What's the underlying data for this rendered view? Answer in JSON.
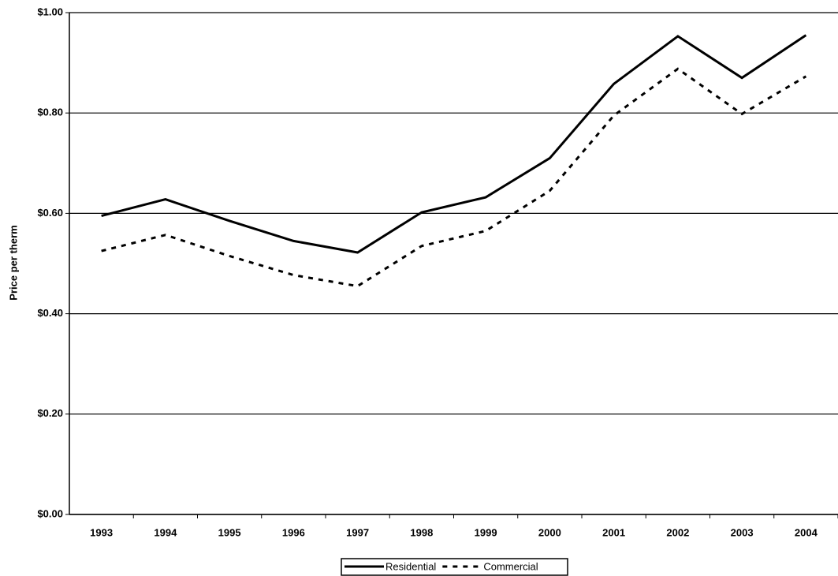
{
  "chart_data": {
    "type": "line",
    "y_label": "Price per therm",
    "categories": [
      "1993",
      "1994",
      "1995",
      "1996",
      "1997",
      "1998",
      "1999",
      "2000",
      "2001",
      "2002",
      "2003",
      "2004"
    ],
    "series": [
      {
        "name": "Residential",
        "color": "#000000",
        "line_style": "solid",
        "values": [
          0.595,
          0.628,
          0.585,
          0.545,
          0.522,
          0.602,
          0.632,
          0.71,
          0.858,
          0.953,
          0.87,
          0.955
        ]
      },
      {
        "name": "Commercial",
        "color": "#000000",
        "line_style": "dashed",
        "values": [
          0.525,
          0.557,
          0.515,
          0.477,
          0.455,
          0.535,
          0.565,
          0.645,
          0.795,
          0.888,
          0.798,
          0.873
        ]
      }
    ],
    "ylim": [
      0,
      1
    ],
    "yticks": [
      {
        "value": 0,
        "label": "$0.00"
      },
      {
        "value": 0.2,
        "label": "$0.20"
      },
      {
        "value": 0.4,
        "label": "$0.40"
      },
      {
        "value": 0.6,
        "label": "$0.60"
      },
      {
        "value": 0.8,
        "label": "$0.80"
      },
      {
        "value": 1,
        "label": "$1.00"
      }
    ],
    "grid": true,
    "legend": "bottom"
  }
}
